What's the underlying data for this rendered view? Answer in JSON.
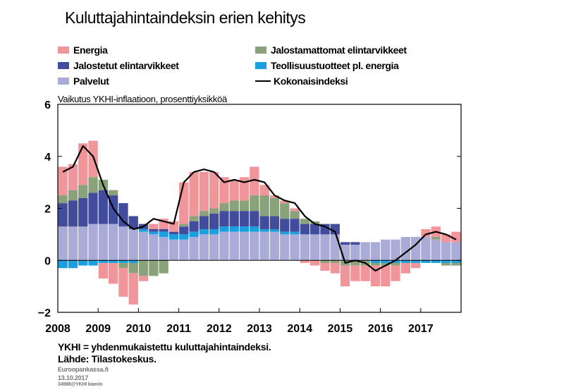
{
  "page": {
    "title": "Kuluttajahintaindeksin erien kehitys",
    "subtitle": "Vaikutus YKHI-inflaatioon, prosenttiyksikköä",
    "note": "YKHI = yhdenmukaistettu kuluttajahintaindeksi.",
    "source": "Lähde: Tilastokeskus.",
    "site": "Euroopankassa.fi",
    "date": "13.10.2017",
    "code": "34988@YKHI kaavio"
  },
  "legend": [
    {
      "label": "Energia",
      "color": "#f0969a",
      "kind": "box"
    },
    {
      "label": "Jalostamattomat elintarvikkeet",
      "color": "#8aa27a",
      "kind": "box"
    },
    {
      "label": "Jalostetut elintarvikkeet",
      "color": "#414c9c",
      "kind": "box"
    },
    {
      "label": "Teollisuustuotteet pl. energia",
      "color": "#1aa0e0",
      "kind": "box"
    },
    {
      "label": "Palvelut",
      "color": "#a8acd6",
      "kind": "box"
    },
    {
      "label": "Kokonaisindeksi",
      "color": "#000000",
      "kind": "line"
    }
  ],
  "chart_data": {
    "type": "bar",
    "stacked": true,
    "title": "Kuluttajahintaindeksin erien kehitys",
    "ylabel": "Vaikutus YKHI-inflaatioon, prosenttiyksikköä",
    "ylim": [
      -2,
      6
    ],
    "yticks": [
      "6",
      "4",
      "2",
      "0",
      "−2"
    ],
    "xlim": [
      "2008-01",
      "2017-12"
    ],
    "xticks": [
      "2008",
      "2009",
      "2010",
      "2011",
      "2012",
      "2013",
      "2014",
      "2015",
      "2016",
      "2017"
    ],
    "grid": false,
    "frequency": "monthly",
    "x": [
      "2008-01",
      "2008-04",
      "2008-07",
      "2008-10",
      "2009-01",
      "2009-04",
      "2009-07",
      "2009-10",
      "2010-01",
      "2010-04",
      "2010-07",
      "2010-10",
      "2011-01",
      "2011-04",
      "2011-07",
      "2011-10",
      "2012-01",
      "2012-04",
      "2012-07",
      "2012-10",
      "2013-01",
      "2013-04",
      "2013-07",
      "2013-10",
      "2014-01",
      "2014-04",
      "2014-07",
      "2014-10",
      "2015-01",
      "2015-04",
      "2015-07",
      "2015-10",
      "2016-01",
      "2016-04",
      "2016-07",
      "2016-10",
      "2017-01",
      "2017-04",
      "2017-07",
      "2017-10"
    ],
    "series": [
      {
        "name": "Palvelut",
        "color": "#a8acd6",
        "values": [
          1.3,
          1.3,
          1.3,
          1.4,
          1.4,
          1.4,
          1.3,
          1.2,
          1.1,
          1.0,
          0.9,
          0.8,
          0.8,
          0.9,
          1.0,
          1.0,
          1.1,
          1.1,
          1.1,
          1.1,
          1.1,
          1.1,
          1.0,
          1.0,
          1.0,
          1.0,
          1.0,
          1.0,
          0.6,
          0.6,
          0.7,
          0.7,
          0.8,
          0.8,
          0.9,
          0.9,
          0.9,
          0.8,
          0.7,
          0.7
        ]
      },
      {
        "name": "Teollisuustuotteet pl. energia",
        "color": "#1aa0e0",
        "values": [
          -0.3,
          -0.3,
          -0.2,
          -0.2,
          -0.1,
          -0.1,
          -0.1,
          -0.1,
          0.1,
          0.1,
          0.2,
          0.2,
          0.2,
          0.2,
          0.2,
          0.2,
          0.2,
          0.2,
          0.2,
          0.2,
          0.1,
          0.1,
          0.1,
          0.1,
          0.0,
          0.0,
          0.0,
          0.0,
          0.0,
          0.0,
          0.0,
          -0.1,
          -0.1,
          -0.1,
          -0.1,
          -0.1,
          -0.1,
          -0.1,
          -0.1,
          -0.1
        ]
      },
      {
        "name": "Jalostetut elintarvikkeet",
        "color": "#414c9c",
        "values": [
          0.9,
          1.0,
          1.1,
          1.2,
          1.3,
          1.1,
          0.9,
          0.5,
          0.2,
          0.1,
          0.1,
          0.1,
          0.3,
          0.4,
          0.5,
          0.6,
          0.6,
          0.6,
          0.6,
          0.6,
          0.5,
          0.5,
          0.5,
          0.5,
          0.4,
          0.4,
          0.4,
          0.4,
          0.1,
          0.1,
          0.0,
          0.0,
          0.0,
          0.0,
          0.0,
          0.0,
          0.0,
          0.0,
          0.0,
          0.0
        ]
      },
      {
        "name": "Jalostamattomat elintarvikkeet",
        "color": "#8aa27a",
        "values": [
          0.3,
          0.4,
          0.5,
          0.6,
          0.4,
          0.2,
          -0.2,
          -0.4,
          -0.6,
          -0.6,
          -0.5,
          0.0,
          0.1,
          0.2,
          0.2,
          0.2,
          0.3,
          0.4,
          0.4,
          0.6,
          0.8,
          0.7,
          0.6,
          0.3,
          0.2,
          0.1,
          -0.1,
          -0.1,
          -0.2,
          -0.2,
          -0.2,
          -0.1,
          -0.1,
          -0.1,
          0.0,
          0.0,
          0.0,
          0.1,
          -0.1,
          -0.1
        ]
      },
      {
        "name": "Energia",
        "color": "#f0969a",
        "values": [
          1.1,
          1.0,
          1.6,
          1.4,
          -0.6,
          -0.8,
          -1.1,
          -1.2,
          -0.2,
          0.2,
          0.4,
          0.4,
          1.6,
          1.7,
          1.5,
          1.4,
          1.0,
          0.8,
          0.9,
          1.1,
          0.4,
          0.1,
          0.1,
          0.1,
          -0.1,
          -0.2,
          -0.3,
          -0.4,
          -0.8,
          -0.6,
          -0.6,
          -0.8,
          -0.8,
          -0.6,
          -0.4,
          -0.2,
          0.3,
          0.4,
          0.3,
          0.4
        ]
      }
    ],
    "total": {
      "name": "Kokonaisindeksi",
      "color": "#000000",
      "values": [
        3.4,
        3.6,
        4.4,
        4.0,
        2.9,
        2.0,
        1.5,
        1.2,
        1.3,
        1.6,
        1.5,
        1.4,
        3.0,
        3.4,
        3.5,
        3.4,
        3.0,
        3.1,
        3.0,
        3.1,
        3.0,
        2.5,
        2.3,
        2.2,
        1.7,
        1.4,
        1.3,
        1.1,
        -0.1,
        0.0,
        -0.1,
        -0.4,
        -0.2,
        0.0,
        0.3,
        0.6,
        1.0,
        1.1,
        1.0,
        0.8
      ]
    }
  }
}
